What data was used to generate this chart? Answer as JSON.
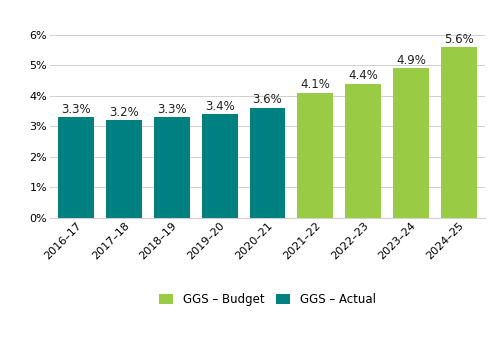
{
  "categories": [
    "2016–17",
    "2017–18",
    "2018–19",
    "2019–20",
    "2020–21",
    "2021–22",
    "2022–23",
    "2023–24",
    "2024–25"
  ],
  "values": [
    3.3,
    3.2,
    3.3,
    3.4,
    3.6,
    4.1,
    4.4,
    4.9,
    5.6
  ],
  "bar_types": [
    "actual",
    "actual",
    "actual",
    "actual",
    "actual",
    "budget",
    "budget",
    "budget",
    "budget"
  ],
  "labels": [
    "3.3%",
    "3.2%",
    "3.3%",
    "3.4%",
    "3.6%",
    "4.1%",
    "4.4%",
    "4.9%",
    "5.6%"
  ],
  "color_actual": "#008080",
  "color_budget": "#99cc44",
  "legend_labels": [
    "GGS – Budget",
    "GGS – Actual"
  ],
  "ylim_max": 6.8,
  "yticks": [
    0,
    1,
    2,
    3,
    4,
    5,
    6
  ],
  "ytick_labels": [
    "0%",
    "1%",
    "2%",
    "3%",
    "4%",
    "5%",
    "6%"
  ],
  "background_color": "#ffffff",
  "grid_color": "#d0d0d0",
  "bar_width": 0.75,
  "label_fontsize": 8.5,
  "tick_fontsize": 8,
  "legend_fontsize": 8.5
}
